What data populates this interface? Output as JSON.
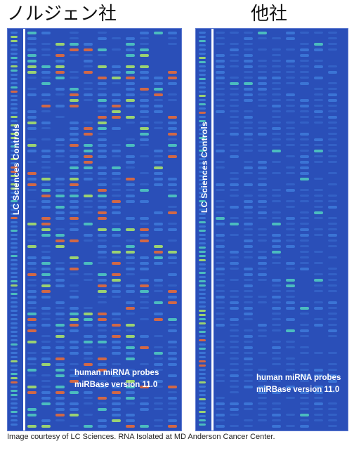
{
  "titles": {
    "left": "ノルジェン社",
    "right": "他社"
  },
  "panels": {
    "left": {
      "vertical_label": "LC Sciences Controls",
      "probe_line1": "human miRNA probes",
      "probe_line2": "miRBase version 11.0"
    },
    "right": {
      "vertical_label": "LC Sciences Controls",
      "probe_line1": "human miRNA probes",
      "probe_line2": "miRBase version 11.0"
    }
  },
  "caption": "Image courtesy of LC Sciences.  RNA Isolated at MD Anderson Cancer Center.",
  "colors": {
    "background": "#2a4fb8",
    "spot_low": "#3d78d8",
    "spot_mid": "#4fc8c0",
    "spot_high": "#a6e06a",
    "spot_top": "#e36a3a"
  }
}
